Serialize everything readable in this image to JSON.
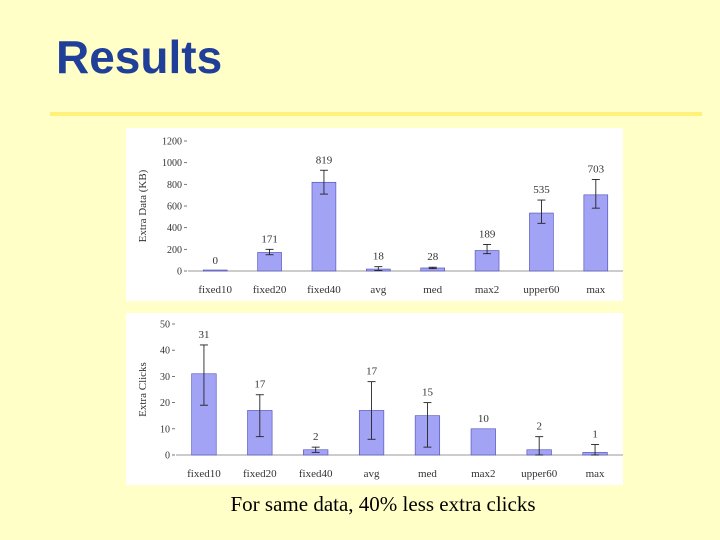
{
  "slide": {
    "title": "Results",
    "caption": "For same data, 40% less extra clicks"
  },
  "colors": {
    "background": "#FFFFC7",
    "title": "#1F3F99",
    "rule": "#FFF27A",
    "bar_fill": "#A3A3F5",
    "bar_stroke": "#4848B8"
  },
  "chart_data": [
    {
      "type": "bar",
      "categories": [
        "fixed10",
        "fixed20",
        "fixed40",
        "avg",
        "med",
        "max2",
        "upper60",
        "max"
      ],
      "values": [
        0,
        171,
        819,
        18,
        28,
        189,
        535,
        703
      ],
      "data_labels": [
        "0",
        "171",
        "819",
        "18",
        "28",
        "189",
        "535",
        "703"
      ],
      "error_high": [
        0,
        200,
        930,
        40,
        35,
        245,
        655,
        845
      ],
      "error_low": [
        0,
        150,
        710,
        5,
        22,
        160,
        440,
        580
      ],
      "ylabel": "Extra Data (KB)",
      "ylim": [
        0,
        1200
      ],
      "yticks": [
        0,
        200,
        400,
        600,
        800,
        1000,
        1200
      ]
    },
    {
      "type": "bar",
      "categories": [
        "fixed10",
        "fixed20",
        "fixed40",
        "avg",
        "med",
        "max2",
        "upper60",
        "max"
      ],
      "values": [
        31,
        17,
        2,
        17,
        15,
        10,
        2,
        1
      ],
      "data_labels": [
        "31",
        "17",
        "2",
        "17",
        "15",
        "10",
        "2",
        "1"
      ],
      "error_high": [
        42,
        23,
        3,
        28,
        20,
        10,
        7,
        4
      ],
      "error_low": [
        19,
        7,
        1,
        6,
        3,
        10,
        0,
        0
      ],
      "ylabel": "Extra Clicks",
      "ylim": [
        0,
        50
      ],
      "yticks": [
        0,
        10,
        20,
        30,
        40,
        50
      ]
    }
  ]
}
